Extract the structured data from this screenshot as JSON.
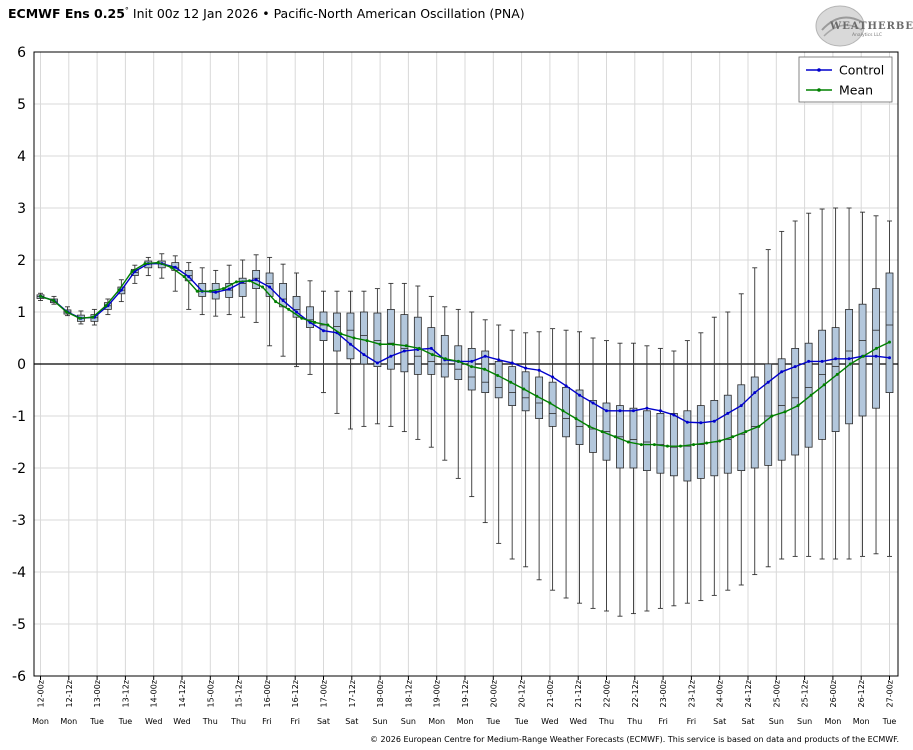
{
  "header": {
    "model": "ECMWF Ens 0.25",
    "degree": "°",
    "init": "Init 00z 12 Jan 2026",
    "bullet": "•",
    "index_name": "Pacific-North American Oscillation (PNA)"
  },
  "logo": {
    "text": "WEATHERBELL",
    "subtext": "Analytics LLC"
  },
  "copyright": "© 2026 European Centre for Medium-Range Weather Forecasts (ECMWF). This service is based on data and products of the ECMWF.",
  "chart_data": {
    "type": "box",
    "title": "ECMWF Ens 0.25° Init 00z 12 Jan 2026 • Pacific-North American Oscillation (PNA)",
    "xlabel": "",
    "ylabel": "",
    "ylim": [
      -6,
      6
    ],
    "yticks": [
      6,
      5,
      4,
      3,
      2,
      1,
      0,
      -1,
      -2,
      -3,
      -4,
      -5,
      -6
    ],
    "grid": true,
    "legend_position": "top-right",
    "colors": {
      "control": "#0000cc",
      "mean": "#008000",
      "box_fill": "#b3c7dc",
      "box_edge": "#2b2b2b",
      "grid": "#d9d9d9",
      "zero": "#000000"
    },
    "date_labels": [
      "12-00z",
      "12-12z",
      "13-00z",
      "13-12z",
      "14-00z",
      "14-12z",
      "15-00z",
      "15-12z",
      "16-00z",
      "16-12z",
      "17-00z",
      "17-12z",
      "18-00z",
      "18-12z",
      "19-00z",
      "19-12z",
      "20-00z",
      "20-12z",
      "21-00z",
      "21-12z",
      "22-00z",
      "22-12z",
      "23-00z",
      "23-12z",
      "24-00z",
      "24-12z",
      "25-00z",
      "25-12z",
      "26-00z",
      "26-12z",
      "27-00z"
    ],
    "day_labels": [
      "Mon",
      "Mon",
      "Tue",
      "Tue",
      "Wed",
      "Wed",
      "Thu",
      "Thu",
      "Fri",
      "Fri",
      "Sat",
      "Sat",
      "Sun",
      "Sun",
      "Mon",
      "Mon",
      "Tue",
      "Tue",
      "Wed",
      "Wed",
      "Thu",
      "Thu",
      "Fri",
      "Fri",
      "Sat",
      "Sat",
      "Sun",
      "Sun",
      "Mon",
      "Mon",
      "Tue"
    ],
    "boxes": {
      "min": [
        1.22,
        1.15,
        0.93,
        0.77,
        0.75,
        0.95,
        1.2,
        1.55,
        1.7,
        1.65,
        1.4,
        1.05,
        0.95,
        0.92,
        0.95,
        0.9,
        0.8,
        0.35,
        0.15,
        -0.05,
        -0.2,
        -0.55,
        -0.95,
        -1.25,
        -1.2,
        -1.15,
        -1.2,
        -1.3,
        -1.45,
        -1.6,
        -1.85,
        -2.2,
        -2.55,
        -3.05,
        -3.45,
        -3.75,
        -3.9,
        -4.15,
        -4.35,
        -4.5,
        -4.6,
        -4.7,
        -4.75,
        -4.85,
        -4.8,
        -4.75,
        -4.7,
        -4.65,
        -4.6,
        -4.55,
        -4.45,
        -4.35,
        -4.25,
        -4.05,
        -3.9,
        -3.75,
        -3.7,
        -3.7,
        -3.75,
        -3.75,
        -3.75,
        -3.7,
        -3.65,
        -3.7
      ],
      "q1": [
        1.26,
        1.18,
        0.96,
        0.82,
        0.82,
        1.05,
        1.35,
        1.7,
        1.85,
        1.85,
        1.8,
        1.6,
        1.3,
        1.25,
        1.28,
        1.3,
        1.45,
        1.3,
        1.1,
        0.9,
        0.7,
        0.45,
        0.25,
        0.1,
        0.0,
        -0.05,
        -0.1,
        -0.15,
        -0.2,
        -0.2,
        -0.25,
        -0.3,
        -0.5,
        -0.55,
        -0.65,
        -0.8,
        -0.9,
        -1.05,
        -1.2,
        -1.4,
        -1.55,
        -1.7,
        -1.85,
        -2.0,
        -2.0,
        -2.05,
        -2.1,
        -2.15,
        -2.25,
        -2.2,
        -2.15,
        -2.1,
        -2.05,
        -2.0,
        -1.95,
        -1.85,
        -1.75,
        -1.6,
        -1.45,
        -1.3,
        -1.15,
        -1.0,
        -0.85,
        -0.55
      ],
      "q3": [
        1.33,
        1.25,
        1.04,
        0.94,
        0.95,
        1.18,
        1.48,
        1.82,
        1.98,
        1.98,
        1.95,
        1.8,
        1.55,
        1.55,
        1.55,
        1.65,
        1.8,
        1.75,
        1.55,
        1.3,
        1.1,
        1.0,
        0.98,
        0.98,
        1.0,
        0.98,
        1.05,
        0.95,
        0.9,
        0.7,
        0.55,
        0.35,
        0.3,
        0.25,
        0.05,
        -0.05,
        -0.15,
        -0.25,
        -0.35,
        -0.45,
        -0.5,
        -0.7,
        -0.75,
        -0.8,
        -0.85,
        -0.9,
        -0.95,
        -0.95,
        -0.9,
        -0.8,
        -0.7,
        -0.6,
        -0.4,
        -0.25,
        0.0,
        0.1,
        0.3,
        0.4,
        0.65,
        0.7,
        1.05,
        1.15,
        1.45,
        1.75
      ],
      "max": [
        1.36,
        1.3,
        1.1,
        1.02,
        1.05,
        1.25,
        1.62,
        1.9,
        2.05,
        2.12,
        2.08,
        1.95,
        1.85,
        1.8,
        1.9,
        2.0,
        2.1,
        2.05,
        1.92,
        1.75,
        1.6,
        1.4,
        1.4,
        1.4,
        1.4,
        1.45,
        1.55,
        1.55,
        1.5,
        1.3,
        1.1,
        1.05,
        1.0,
        0.85,
        0.75,
        0.65,
        0.6,
        0.62,
        0.68,
        0.65,
        0.62,
        0.5,
        0.45,
        0.4,
        0.4,
        0.35,
        0.3,
        0.25,
        0.45,
        0.6,
        0.9,
        1.0,
        1.35,
        1.85,
        2.2,
        2.55,
        2.75,
        2.9,
        2.98,
        3.0,
        3.0,
        2.92,
        2.85,
        2.75
      ],
      "median": [
        1.3,
        1.21,
        1.0,
        0.88,
        0.89,
        1.12,
        1.42,
        1.76,
        1.92,
        1.93,
        1.85,
        1.7,
        1.4,
        1.38,
        1.42,
        1.55,
        1.65,
        1.55,
        1.25,
        1.05,
        0.85,
        0.75,
        0.72,
        0.65,
        0.55,
        0.45,
        0.4,
        0.3,
        0.15,
        0.05,
        0.0,
        -0.1,
        -0.25,
        -0.35,
        -0.45,
        -0.55,
        -0.65,
        -0.75,
        -0.95,
        -1.05,
        -1.2,
        -1.25,
        -1.3,
        -1.4,
        -1.45,
        -1.5,
        -1.55,
        -1.6,
        -1.58,
        -1.55,
        -1.5,
        -1.45,
        -1.35,
        -1.2,
        -1.0,
        -0.8,
        -0.65,
        -0.45,
        -0.2,
        -0.05,
        0.25,
        0.45,
        0.65,
        0.75
      ]
    },
    "series": [
      {
        "name": "Control",
        "values": [
          1.3,
          1.22,
          1.0,
          0.88,
          0.9,
          1.12,
          1.42,
          1.78,
          1.93,
          1.93,
          1.86,
          1.68,
          1.4,
          1.38,
          1.44,
          1.58,
          1.62,
          1.48,
          1.22,
          1.0,
          0.8,
          0.64,
          0.6,
          0.38,
          0.18,
          0.02,
          0.15,
          0.25,
          0.28,
          0.3,
          0.08,
          0.05,
          0.05,
          0.15,
          0.08,
          0.02,
          -0.08,
          -0.12,
          -0.25,
          -0.42,
          -0.6,
          -0.75,
          -0.9,
          -0.9,
          -0.9,
          -0.85,
          -0.9,
          -0.98,
          -1.12,
          -1.13,
          -1.1,
          -0.95,
          -0.8,
          -0.55,
          -0.35,
          -0.15,
          -0.05,
          0.05,
          0.05,
          0.1,
          0.1,
          0.15,
          0.15,
          0.12
        ]
      },
      {
        "name": "Mean",
        "values": [
          1.3,
          1.22,
          1.0,
          0.88,
          0.9,
          1.12,
          1.42,
          1.78,
          1.93,
          1.95,
          1.86,
          1.68,
          1.4,
          1.4,
          1.45,
          1.58,
          1.6,
          1.48,
          1.2,
          1.05,
          0.88,
          0.8,
          0.75,
          0.58,
          0.5,
          0.45,
          0.38,
          0.38,
          0.35,
          0.3,
          0.18,
          0.1,
          0.05,
          -0.05,
          -0.1,
          -0.22,
          -0.35,
          -0.48,
          -0.62,
          -0.75,
          -0.9,
          -1.05,
          -1.2,
          -1.3,
          -1.4,
          -1.5,
          -1.55,
          -1.55,
          -1.58,
          -1.58,
          -1.55,
          -1.52,
          -1.48,
          -1.4,
          -1.3,
          -1.2,
          -1.0,
          -0.92,
          -0.8,
          -0.6,
          -0.4,
          -0.2,
          0.0,
          0.15,
          0.3,
          0.42
        ]
      }
    ]
  }
}
